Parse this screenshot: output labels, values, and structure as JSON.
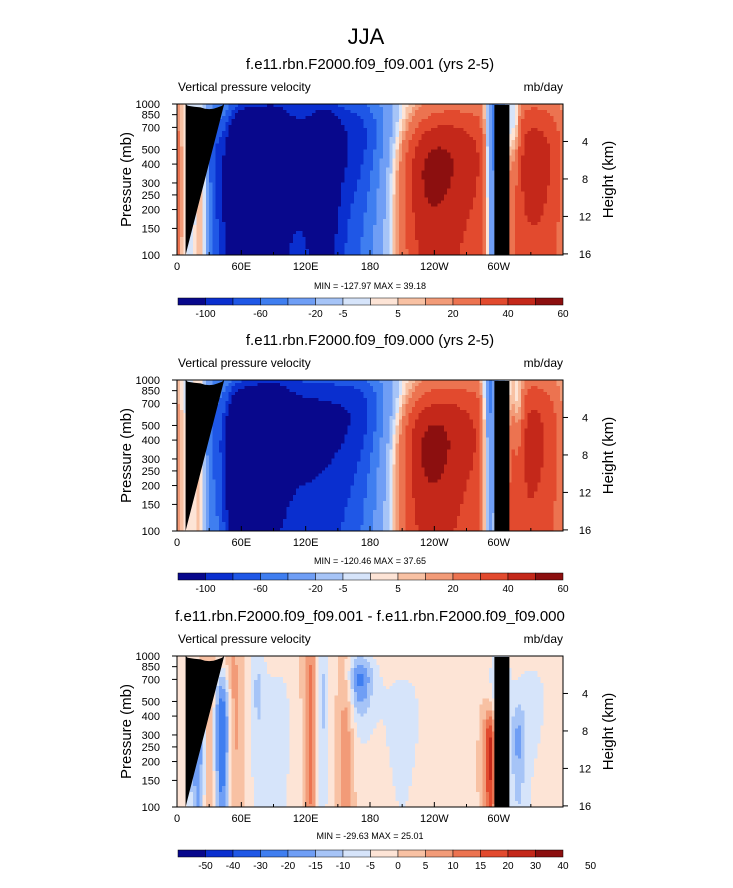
{
  "figure": {
    "title": "JJA"
  },
  "colors": {
    "seq12": [
      "#08088c",
      "#0a2fcf",
      "#1f57e6",
      "#3f7ef0",
      "#6f9ef5",
      "#a6c4f7",
      "#d6e4fa",
      "#fde4d6",
      "#f8c1a3",
      "#f29b78",
      "#ec7350",
      "#e24a2e",
      "#c4281a",
      "#8c0f0f"
    ],
    "seq14": [
      "#08088c",
      "#0a2fcf",
      "#1f57e6",
      "#3f7ef0",
      "#6f9ef5",
      "#a6c4f7",
      "#d6e4fa",
      "#fde4d6",
      "#f8c1a3",
      "#f29b78",
      "#ec7350",
      "#e24a2e",
      "#c4281a",
      "#8c0f0f"
    ]
  },
  "chart_data": [
    {
      "type": "heatmap",
      "title": "f.e11.rbn.F2000.f09_f09.001 (yrs 2-5)",
      "left_label": "Vertical pressure velocity",
      "right_label": "mb/day",
      "ylabel": "Pressure (mb)",
      "y2label": "Height (km)",
      "xticks": [
        "0",
        "60E",
        "120E",
        "180",
        "120W",
        "60W"
      ],
      "xtick_lon": [
        0,
        60,
        120,
        180,
        240,
        300
      ],
      "xlim": [
        0,
        360
      ],
      "yticks": [
        "100",
        "150",
        "200",
        "250",
        "300",
        "400",
        "500",
        "700",
        "850",
        "1000"
      ],
      "ytick_p": [
        100,
        150,
        200,
        250,
        300,
        400,
        500,
        700,
        850,
        1000
      ],
      "ylim": [
        1000,
        100
      ],
      "y2ticks": [
        "4",
        "8",
        "12",
        "16"
      ],
      "stats": "MIN = -127.97  MAX =  39.18",
      "colorbar_labels": [
        "-100",
        "-60",
        "-20",
        "-5",
        "5",
        "20",
        "40",
        "60"
      ],
      "colorbar_levels": [
        -100,
        -80,
        -60,
        -40,
        -20,
        -10,
        -5,
        0,
        5,
        10,
        20,
        30,
        40,
        50,
        60
      ],
      "features": [
        {
          "lon": 60,
          "p": 300,
          "value": -115,
          "sx": 14,
          "sy": 330
        },
        {
          "lon": 65,
          "p": 500,
          "value": -75,
          "sx": 28,
          "sy": 550
        },
        {
          "lon": 110,
          "p": 450,
          "value": -65,
          "sx": 40,
          "sy": 650
        },
        {
          "lon": 150,
          "p": 500,
          "value": -55,
          "sx": 35,
          "sy": 550
        },
        {
          "lon": 178,
          "p": 650,
          "value": -30,
          "sx": 18,
          "sy": 400
        },
        {
          "lon": 138,
          "p": 350,
          "value": -30,
          "sx": 10,
          "sy": 600
        },
        {
          "lon": 12,
          "p": 450,
          "value": -12,
          "sx": 8,
          "sy": 500
        },
        {
          "lon": 32,
          "p": 450,
          "value": -22,
          "sx": 6,
          "sy": 450
        },
        {
          "lon": 24,
          "p": 400,
          "value": 38,
          "sx": 5,
          "sy": 450
        },
        {
          "lon": 45,
          "p": 500,
          "value": 25,
          "sx": 6,
          "sy": 350
        },
        {
          "lon": 255,
          "p": 420,
          "value": 34,
          "sx": 38,
          "sy": 450
        },
        {
          "lon": 220,
          "p": 300,
          "value": 20,
          "sx": 25,
          "sy": 300
        },
        {
          "lon": 340,
          "p": 420,
          "value": 32,
          "sx": 28,
          "sy": 500
        },
        {
          "lon": 295,
          "p": 600,
          "value": -70,
          "sx": 5,
          "sy": 600
        },
        {
          "lon": 305,
          "p": 700,
          "value": -35,
          "sx": 5,
          "sy": 350
        },
        {
          "lon": 315,
          "p": 700,
          "value": -25,
          "sx": 4,
          "sy": 300
        },
        {
          "lon": 90,
          "p": 600,
          "value": -25,
          "sx": 10,
          "sy": 350
        }
      ]
    },
    {
      "type": "heatmap",
      "title": "f.e11.rbn.F2000.f09_f09.000 (yrs 2-5)",
      "left_label": "Vertical pressure velocity",
      "right_label": "mb/day",
      "ylabel": "Pressure (mb)",
      "y2label": "Height (km)",
      "xticks": [
        "0",
        "60E",
        "120E",
        "180",
        "120W",
        "60W"
      ],
      "xtick_lon": [
        0,
        60,
        120,
        180,
        240,
        300
      ],
      "xlim": [
        0,
        360
      ],
      "yticks": [
        "100",
        "150",
        "200",
        "250",
        "300",
        "400",
        "500",
        "700",
        "850",
        "1000"
      ],
      "ytick_p": [
        100,
        150,
        200,
        250,
        300,
        400,
        500,
        700,
        850,
        1000
      ],
      "ylim": [
        1000,
        100
      ],
      "y2ticks": [
        "4",
        "8",
        "12",
        "16"
      ],
      "stats": "MIN = -120.46  MAX =  37.65",
      "colorbar_labels": [
        "-100",
        "-60",
        "-20",
        "-5",
        "5",
        "20",
        "40",
        "60"
      ],
      "colorbar_levels": [
        -100,
        -80,
        -60,
        -40,
        -20,
        -10,
        -5,
        0,
        5,
        10,
        20,
        30,
        40,
        50,
        60
      ],
      "features": [
        {
          "lon": 60,
          "p": 300,
          "value": -110,
          "sx": 13,
          "sy": 320
        },
        {
          "lon": 68,
          "p": 550,
          "value": -70,
          "sx": 28,
          "sy": 550
        },
        {
          "lon": 112,
          "p": 450,
          "value": -62,
          "sx": 40,
          "sy": 650
        },
        {
          "lon": 152,
          "p": 500,
          "value": -58,
          "sx": 35,
          "sy": 550
        },
        {
          "lon": 178,
          "p": 650,
          "value": -30,
          "sx": 18,
          "sy": 400
        },
        {
          "lon": 10,
          "p": 500,
          "value": -12,
          "sx": 8,
          "sy": 500
        },
        {
          "lon": 30,
          "p": 500,
          "value": -22,
          "sx": 6,
          "sy": 450
        },
        {
          "lon": 22,
          "p": 500,
          "value": 30,
          "sx": 5,
          "sy": 450
        },
        {
          "lon": 45,
          "p": 450,
          "value": 15,
          "sx": 6,
          "sy": 350
        },
        {
          "lon": 250,
          "p": 420,
          "value": 33,
          "sx": 40,
          "sy": 450
        },
        {
          "lon": 220,
          "p": 300,
          "value": 20,
          "sx": 25,
          "sy": 300
        },
        {
          "lon": 335,
          "p": 400,
          "value": 30,
          "sx": 28,
          "sy": 500
        },
        {
          "lon": 293,
          "p": 600,
          "value": -65,
          "sx": 5,
          "sy": 600
        },
        {
          "lon": 305,
          "p": 700,
          "value": -35,
          "sx": 5,
          "sy": 350
        },
        {
          "lon": 318,
          "p": 700,
          "value": -25,
          "sx": 4,
          "sy": 300
        },
        {
          "lon": 90,
          "p": 600,
          "value": -22,
          "sx": 10,
          "sy": 350
        }
      ]
    },
    {
      "type": "heatmap",
      "title": "f.e11.rbn.F2000.f09_f09.001 - f.e11.rbn.F2000.f09_f09.000",
      "left_label": "Vertical pressure velocity",
      "right_label": "mb/day",
      "ylabel": "Pressure (mb)",
      "y2label": "Height (km)",
      "xticks": [
        "0",
        "60E",
        "120E",
        "180",
        "120W",
        "60W"
      ],
      "xtick_lon": [
        0,
        60,
        120,
        180,
        240,
        300
      ],
      "xlim": [
        0,
        360
      ],
      "yticks": [
        "100",
        "150",
        "200",
        "250",
        "300",
        "400",
        "500",
        "700",
        "850",
        "1000"
      ],
      "ytick_p": [
        100,
        150,
        200,
        250,
        300,
        400,
        500,
        700,
        850,
        1000
      ],
      "ylim": [
        1000,
        100
      ],
      "y2ticks": [
        "4",
        "8",
        "12",
        "16"
      ],
      "stats": "MIN = -29.63  MAX =  25.01",
      "colorbar_labels": [
        "-50",
        "-40",
        "-30",
        "-20",
        "-15",
        "-10",
        "-5",
        "0",
        "5",
        "10",
        "15",
        "20",
        "30",
        "40",
        "50"
      ],
      "colorbar_levels": [
        -50,
        -40,
        -30,
        -20,
        -15,
        -10,
        -5,
        0,
        5,
        10,
        15,
        20,
        30,
        40,
        50
      ],
      "features": [
        {
          "lon": 20,
          "p": 300,
          "value": -22,
          "sx": 6,
          "sy": 250
        },
        {
          "lon": 42,
          "p": 330,
          "value": -28,
          "sx": 6,
          "sy": 300
        },
        {
          "lon": 30,
          "p": 350,
          "value": 12,
          "sx": 5,
          "sy": 400
        },
        {
          "lon": 52,
          "p": 450,
          "value": 10,
          "sx": 5,
          "sy": 500
        },
        {
          "lon": 75,
          "p": 600,
          "value": -10,
          "sx": 6,
          "sy": 450
        },
        {
          "lon": 125,
          "p": 500,
          "value": 15,
          "sx": 4,
          "sy": 500
        },
        {
          "lon": 135,
          "p": 550,
          "value": -12,
          "sx": 5,
          "sy": 450
        },
        {
          "lon": 158,
          "p": 400,
          "value": 10,
          "sx": 5,
          "sy": 450
        },
        {
          "lon": 170,
          "p": 700,
          "value": -20,
          "sx": 9,
          "sy": 230
        },
        {
          "lon": 210,
          "p": 400,
          "value": -6,
          "sx": 25,
          "sy": 500
        },
        {
          "lon": 292,
          "p": 230,
          "value": 25,
          "sx": 4,
          "sy": 150
        },
        {
          "lon": 318,
          "p": 270,
          "value": -12,
          "sx": 5,
          "sy": 150
        },
        {
          "lon": 300,
          "p": 700,
          "value": -10,
          "sx": 6,
          "sy": 300
        },
        {
          "lon": 330,
          "p": 500,
          "value": -6,
          "sx": 20,
          "sy": 500
        },
        {
          "lon": 95,
          "p": 350,
          "value": -8,
          "sx": 10,
          "sy": 400
        }
      ]
    }
  ]
}
